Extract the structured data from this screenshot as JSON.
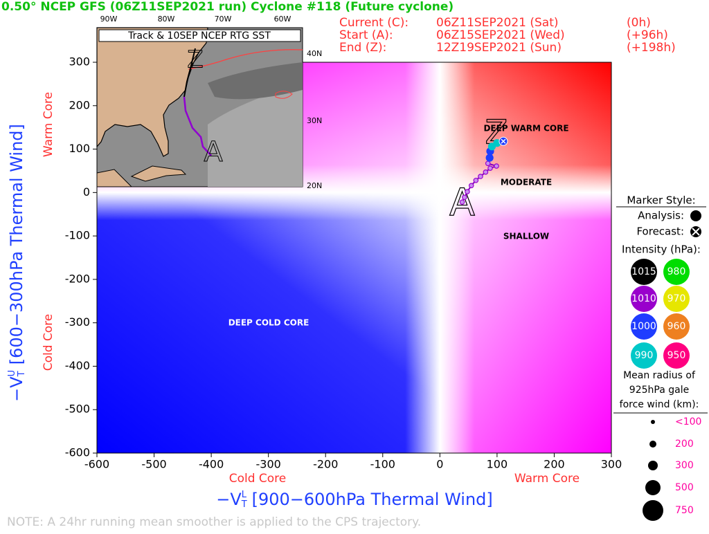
{
  "title": "0.50° NCEP GFS (06Z11SEP2021 run) Cyclone #118 (Future cyclone)",
  "info": [
    [
      "Current (C):",
      "06Z11SEP2021 (Sat)",
      "(0h)"
    ],
    [
      "Start (A):",
      "06Z15SEP2021 (Wed)",
      "(+96h)"
    ],
    [
      "End (Z):",
      "12Z19SEP2021 (Sun)",
      "(+198h)"
    ]
  ],
  "note": "NOTE: A 24hr running mean smoother is applied to the CPS trajectory.",
  "inset": {
    "title": "Track & 10SEP NCEP RTG SST",
    "lon_labels": [
      "90W",
      "80W",
      "70W",
      "60W"
    ],
    "lat_labels": [
      "40N",
      "30N",
      "20N"
    ]
  },
  "legend": {
    "marker_title": "Marker Style:",
    "analysis": "Analysis:",
    "forecast": "Forecast:",
    "intensity_title": "Intensity (hPa):",
    "intensity": [
      {
        "value": 1015,
        "color": "#000000"
      },
      {
        "value": 1010,
        "color": "#9900cc"
      },
      {
        "value": 1000,
        "color": "#1f3cff"
      },
      {
        "value": 990,
        "color": "#00c8c8"
      },
      {
        "value": 980,
        "color": "#00dd00"
      },
      {
        "value": 970,
        "color": "#e6e600"
      },
      {
        "value": 960,
        "color": "#ee8020"
      },
      {
        "value": 950,
        "color": "#ff0080"
      }
    ],
    "radius_title": [
      "Mean radius of",
      "925hPa gale",
      "force wind (km):"
    ],
    "radius_labels": [
      "<100",
      "200",
      "300",
      "500",
      "750"
    ]
  },
  "chart_data": {
    "type": "line",
    "xlim": [
      -600,
      300
    ],
    "ylim": [
      -600,
      300
    ],
    "xticks": [
      -600,
      -500,
      -400,
      -300,
      -200,
      -100,
      0,
      100,
      200,
      300
    ],
    "yticks": [
      -600,
      -500,
      -400,
      -300,
      -200,
      -100,
      0,
      100,
      200,
      300
    ],
    "x_label": {
      "v": "−V",
      "sub": "T",
      "sup": "L",
      "text": " [900−600hPa Thermal Wind]"
    },
    "y_label": {
      "v": "−V",
      "sub": "T",
      "sup": "U",
      "text": " [600−300hPa Thermal Wind]"
    },
    "x_side_labels": [
      "Cold Core",
      "Warm Core"
    ],
    "y_side_labels": [
      "Cold Core",
      "Warm Core"
    ],
    "regions": [
      "DEEP WARM CORE",
      "MODERATE",
      "SHALLOW",
      "DEEP COLD CORE"
    ],
    "track_labels": {
      "start": "A",
      "end": "Z"
    },
    "series": [
      {
        "color": "#8000c0",
        "x": [
          39,
          43,
          48,
          55,
          63,
          71,
          80,
          88,
          99,
          84,
          87,
          88,
          91,
          100,
          111
        ],
        "values": [
          -22,
          -11,
          2,
          16,
          28,
          37,
          47,
          56,
          61,
          67,
          80,
          95,
          106,
          114,
          118
        ],
        "intensity": [
          1010,
          1010,
          1010,
          1010,
          1010,
          1010,
          1010,
          1010,
          1010,
          1010,
          1000,
          1000,
          990,
          990,
          1000
        ]
      }
    ]
  }
}
